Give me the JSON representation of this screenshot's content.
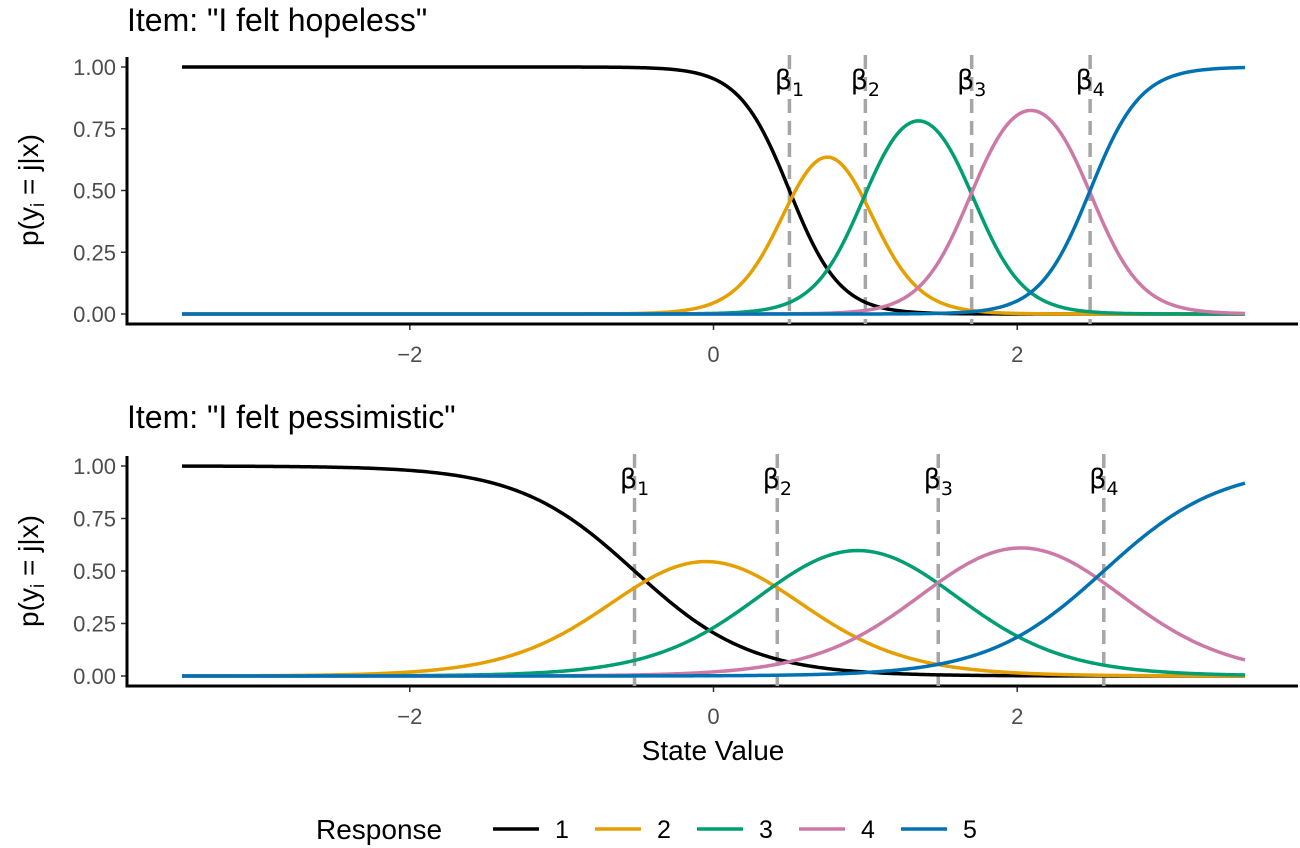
{
  "chart_data": [
    {
      "type": "line",
      "title": "Item: \"I felt hopeless\"",
      "xlabel": "",
      "ylabel": "p(y_i = j|x)",
      "xlim": [
        -3.5,
        3.5
      ],
      "ylim": [
        0,
        1
      ],
      "x_ticks": [
        -2,
        0,
        2
      ],
      "x_tick_labels": [
        "−2",
        "0",
        "2"
      ],
      "y_ticks": [
        0,
        0.25,
        0.5,
        0.75,
        1
      ],
      "y_tick_labels": [
        "0.00",
        "0.25",
        "0.50",
        "0.75",
        "1.00"
      ],
      "thresholds": [
        {
          "label": "β",
          "sub": "1",
          "value": 0.5
        },
        {
          "label": "β",
          "sub": "2",
          "value": 1.0
        },
        {
          "label": "β",
          "sub": "3",
          "value": 1.7
        },
        {
          "label": "β",
          "sub": "4",
          "value": 2.48
        }
      ],
      "slope": 6.0,
      "grid": false
    },
    {
      "type": "line",
      "title": "Item: \"I felt pessimistic\"",
      "xlabel": "State Value",
      "ylabel": "p(y_i = j|x)",
      "xlim": [
        -3.5,
        3.5
      ],
      "ylim": [
        0,
        1
      ],
      "x_ticks": [
        -2,
        0,
        2
      ],
      "x_tick_labels": [
        "−2",
        "0",
        "2"
      ],
      "y_ticks": [
        0,
        0.25,
        0.5,
        0.75,
        1
      ],
      "y_tick_labels": [
        "0.00",
        "0.25",
        "0.50",
        "0.75",
        "1.00"
      ],
      "thresholds": [
        {
          "label": "β",
          "sub": "1",
          "value": -0.52
        },
        {
          "label": "β",
          "sub": "2",
          "value": 0.42
        },
        {
          "label": "β",
          "sub": "3",
          "value": 1.48
        },
        {
          "label": "β",
          "sub": "4",
          "value": 2.57
        }
      ],
      "slope": 2.6,
      "grid": false
    }
  ],
  "legend": {
    "title": "Response",
    "position": "bottom",
    "entries": [
      {
        "label": "1",
        "color": "#000000"
      },
      {
        "label": "2",
        "color": "#E69F00"
      },
      {
        "label": "3",
        "color": "#009E73"
      },
      {
        "label": "4",
        "color": "#CC79A7"
      },
      {
        "label": "5",
        "color": "#0072B2"
      }
    ]
  },
  "colors": {
    "threshold_line": "#a6a6a6",
    "axis": "#000000",
    "tick_text": "#4d4d4d"
  }
}
